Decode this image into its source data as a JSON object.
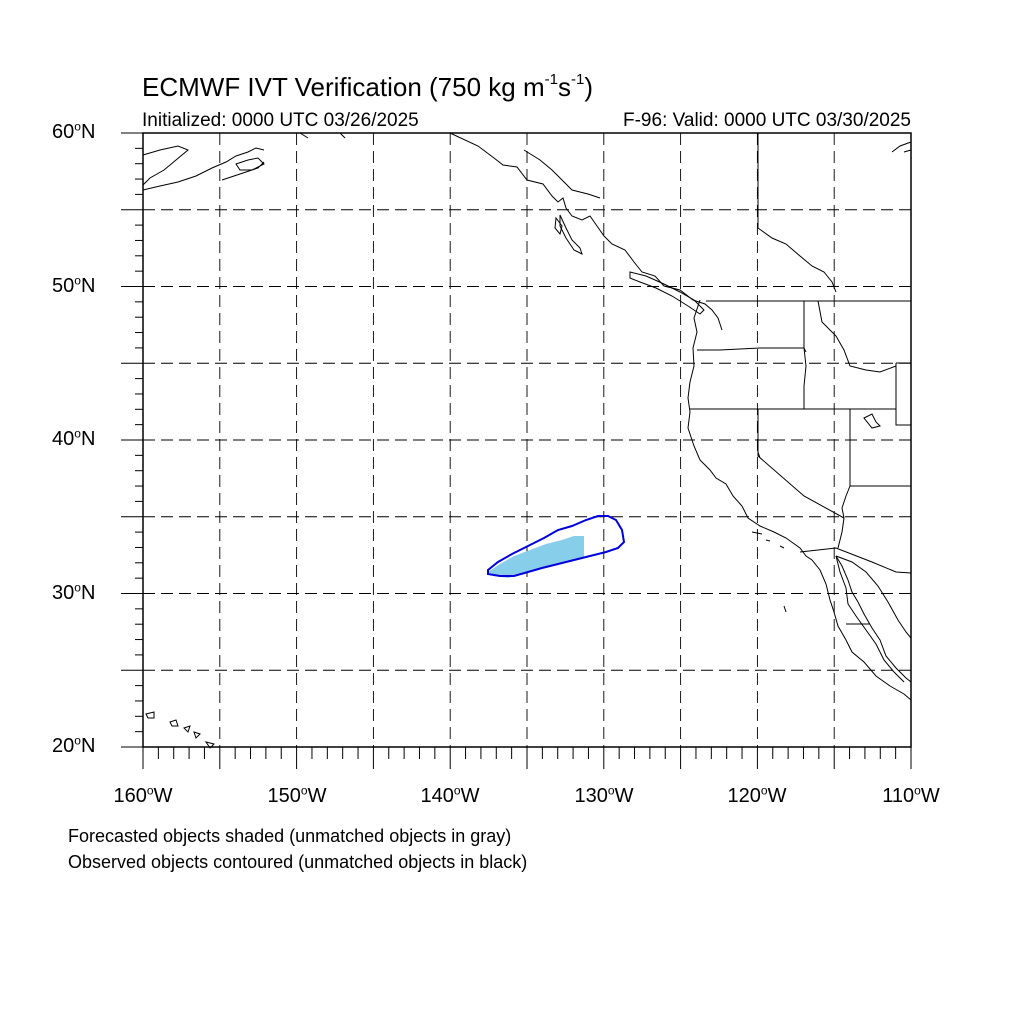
{
  "map": {
    "title_main": "ECMWF IVT Verification (750 kg m",
    "title_exp1": "-1",
    "title_mid": "s",
    "title_exp2": "-1",
    "title_end": ")",
    "initialized": "Initialized: 0000 UTC 03/26/2025",
    "valid": "F-96: Valid: 0000 UTC 03/30/2025",
    "lat_labels": [
      {
        "num": "60",
        "hemi": "N"
      },
      {
        "num": "50",
        "hemi": "N"
      },
      {
        "num": "40",
        "hemi": "N"
      },
      {
        "num": "30",
        "hemi": "N"
      },
      {
        "num": "20",
        "hemi": "N"
      }
    ],
    "lon_labels": [
      {
        "num": "160",
        "hemi": "W"
      },
      {
        "num": "150",
        "hemi": "W"
      },
      {
        "num": "140",
        "hemi": "W"
      },
      {
        "num": "130",
        "hemi": "W"
      },
      {
        "num": "120",
        "hemi": "W"
      },
      {
        "num": "110",
        "hemi": "W"
      }
    ],
    "note_forecast": "Forecasted objects shaded (unmatched objects in gray)",
    "note_observed": "Observed objects contoured (unmatched objects in black)",
    "colors": {
      "forecast_fill": "#87ceeb",
      "observed_contour": "#0000dd",
      "coast": "#000000",
      "grid": "#000000"
    },
    "extent": {
      "lon_min": -160,
      "lon_max": -110,
      "lat_min": 20,
      "lat_max": 60
    },
    "grid_lon_step": 5,
    "grid_lat_step": 5,
    "grid_style": "dashed"
  }
}
